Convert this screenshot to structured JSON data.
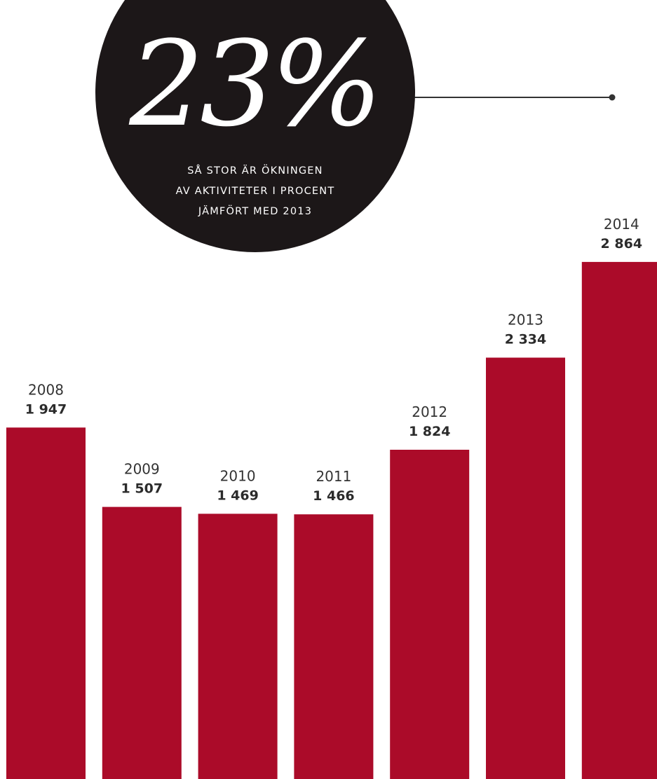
{
  "chart_data": {
    "type": "bar",
    "categories": [
      "2008",
      "2009",
      "2010",
      "2011",
      "2012",
      "2013",
      "2014"
    ],
    "values": [
      1947,
      1507,
      1469,
      1466,
      1824,
      2334,
      2864
    ],
    "value_labels": [
      "1 947",
      "1 507",
      "1 469",
      "1 466",
      "1 824",
      "2 334",
      "2 864"
    ],
    "ylim": [
      0,
      3000
    ],
    "grid": false,
    "legend": "none",
    "bar_color": "#ab0b29",
    "callout": {
      "value": "23%",
      "lines": [
        "SÅ STOR ÄR ÖKNINGEN",
        "AV AKTIVITETER I PROCENT",
        "JÄMFÖRT MED 2013"
      ],
      "circle_color": "#1c1718",
      "target_category": "2014"
    }
  }
}
